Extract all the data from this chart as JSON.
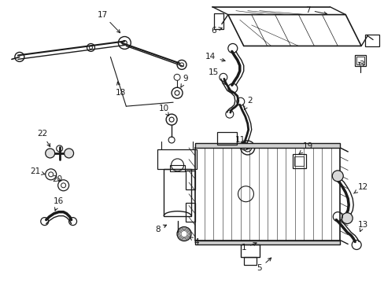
{
  "bg_color": "#ffffff",
  "line_color": "#1a1a1a",
  "figsize": [
    4.89,
    3.6
  ],
  "dpi": 100,
  "label_fontsize": 7.5,
  "lw_main": 1.0,
  "lw_thin": 0.5
}
